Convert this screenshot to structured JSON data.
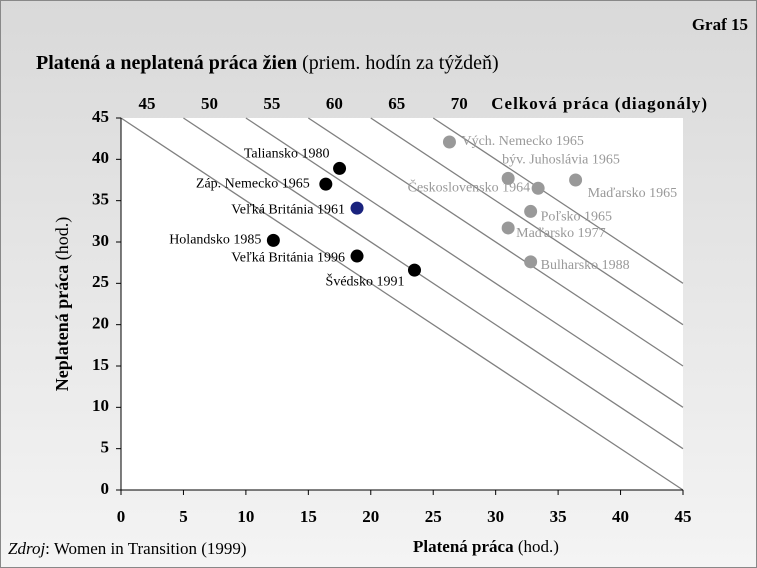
{
  "chart_data": {
    "type": "scatter",
    "corner_label": "Graf 15",
    "title": "Platená a neplatená práca žien",
    "subtitle": "(priem. hodín za týždeň)",
    "x_label": "Platená práca",
    "x_unit": "(hod.)",
    "y_label": "Neplatená práca",
    "y_unit": "(hod.)",
    "top_axis_label": "Celková práca (diagonály)",
    "source_prefix": "Zdroj",
    "source": ": Women in Transition (1999)",
    "xlim": [
      0,
      45
    ],
    "ylim": [
      0,
      45
    ],
    "xticks": [
      0,
      5,
      10,
      15,
      20,
      25,
      30,
      35,
      40,
      45
    ],
    "yticks": [
      0,
      5,
      10,
      15,
      20,
      25,
      30,
      35,
      40,
      45
    ],
    "diagonals": [
      45,
      50,
      55,
      60,
      65,
      70
    ],
    "points": [
      {
        "label": "Vých. Nemecko 1965",
        "x": 26.3,
        "y": 42.1,
        "color": "#999999"
      },
      {
        "label": "býv. Juhoslávia 1965",
        "x": 31.0,
        "y": 37.7,
        "color": "#999999"
      },
      {
        "label": "Maďarsko 1965",
        "x": 36.4,
        "y": 37.5,
        "color": "#999999"
      },
      {
        "label": "Československo 1964",
        "x": 33.4,
        "y": 36.5,
        "color": "#999999"
      },
      {
        "label": "Poľsko 1965",
        "x": 32.8,
        "y": 33.7,
        "color": "#999999"
      },
      {
        "label": "Maďarsko 1977",
        "x": 31.0,
        "y": 31.7,
        "color": "#999999"
      },
      {
        "label": "Bulharsko 1988",
        "x": 32.8,
        "y": 27.6,
        "color": "#999999"
      },
      {
        "label": "Taliansko 1980",
        "x": 17.5,
        "y": 38.9,
        "color": "#000000"
      },
      {
        "label": "Záp. Nemecko 1965",
        "x": 16.4,
        "y": 37.0,
        "color": "#000000"
      },
      {
        "label": "Veľká Británia 1961",
        "x": 18.9,
        "y": 34.1,
        "color": "#1a237e"
      },
      {
        "label": "Holandsko 1985",
        "x": 12.2,
        "y": 30.2,
        "color": "#000000"
      },
      {
        "label": "Veľká Británia 1996",
        "x": 18.9,
        "y": 28.3,
        "color": "#000000"
      },
      {
        "label": "Švédsko 1991",
        "x": 23.5,
        "y": 26.6,
        "color": "#000000"
      }
    ]
  }
}
